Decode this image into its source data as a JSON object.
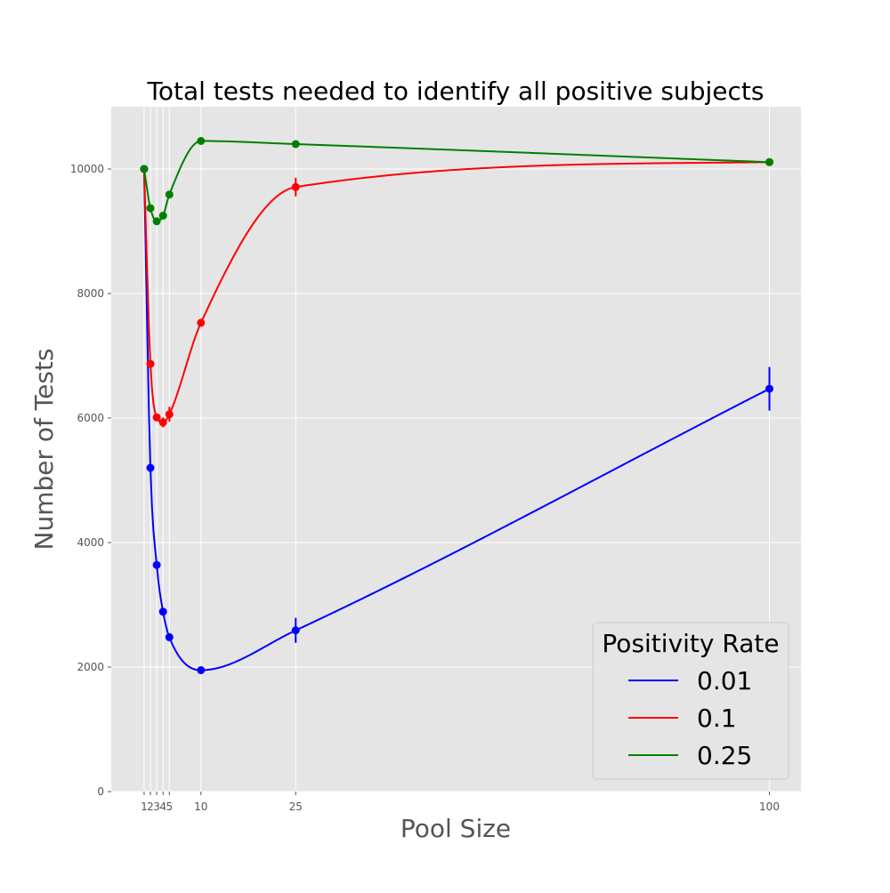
{
  "chart_data": {
    "type": "line",
    "title": "Total tests needed to identify all positive subjects",
    "xlabel": "Pool Size",
    "ylabel": "Number of Tests",
    "x": [
      1,
      2,
      3,
      4,
      5,
      10,
      25,
      100
    ],
    "x_tick_labels": [
      "1",
      "2",
      "3",
      "4",
      "5",
      "10",
      "25",
      "100"
    ],
    "xlim": [
      -4.2,
      105
    ],
    "ylim": [
      0,
      11000
    ],
    "y_ticks": [
      0,
      2000,
      4000,
      6000,
      8000,
      10000
    ],
    "y_tick_labels": [
      "0",
      "2000",
      "4000",
      "6000",
      "8000",
      "10000"
    ],
    "grid": true,
    "legend": {
      "title": "Positivity Rate",
      "position": "lower-right"
    },
    "series": [
      {
        "name": "0.01",
        "color": "#0000ff",
        "values": [
          10000,
          5200,
          3640,
          2890,
          2480,
          1950,
          2590,
          6470
        ],
        "errors": [
          0,
          30,
          40,
          50,
          60,
          50,
          200,
          350
        ]
      },
      {
        "name": "0.1",
        "color": "#ff0000",
        "values": [
          10000,
          6870,
          6010,
          5930,
          6060,
          7530,
          9710,
          10110
        ],
        "errors": [
          0,
          40,
          60,
          80,
          120,
          60,
          150,
          30
        ]
      },
      {
        "name": "0.25",
        "color": "#008000",
        "values": [
          10000,
          9370,
          9160,
          9250,
          9590,
          10450,
          10400,
          10110
        ],
        "errors": [
          0,
          30,
          60,
          50,
          40,
          50,
          30,
          20
        ]
      }
    ]
  }
}
